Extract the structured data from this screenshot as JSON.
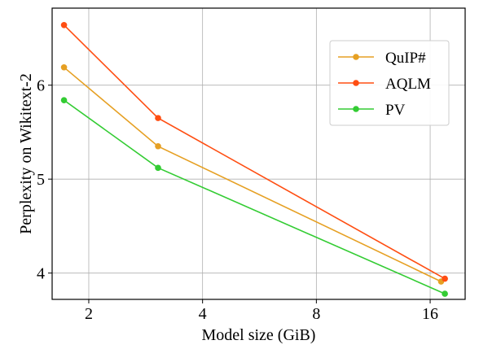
{
  "chart_data": {
    "type": "line",
    "title": "",
    "xlabel": "Model size (GiB)",
    "ylabel": "Perplexity on Wikitext-2",
    "x_scale": "log2",
    "xlim": [
      1.6,
      19.8
    ],
    "ylim": [
      3.72,
      6.82
    ],
    "x_ticks": [
      2,
      4,
      8,
      16
    ],
    "x_tick_labels": [
      "2",
      "4",
      "8",
      "16"
    ],
    "y_ticks": [
      4,
      5,
      6
    ],
    "y_tick_labels": [
      "4",
      "5",
      "6"
    ],
    "grid": true,
    "legend_position": "top-right",
    "series": [
      {
        "name": "QuIP#",
        "color": "#e6a023",
        "x": [
          1.72,
          3.05,
          17.1
        ],
        "y": [
          6.19,
          5.35,
          3.91
        ]
      },
      {
        "name": "AQLM",
        "color": "#ff4e12",
        "x": [
          1.72,
          3.05,
          17.5
        ],
        "y": [
          6.64,
          5.65,
          3.94
        ]
      },
      {
        "name": "PV",
        "color": "#33cc33",
        "x": [
          1.72,
          3.05,
          17.5
        ],
        "y": [
          5.84,
          5.12,
          3.78
        ]
      }
    ]
  }
}
